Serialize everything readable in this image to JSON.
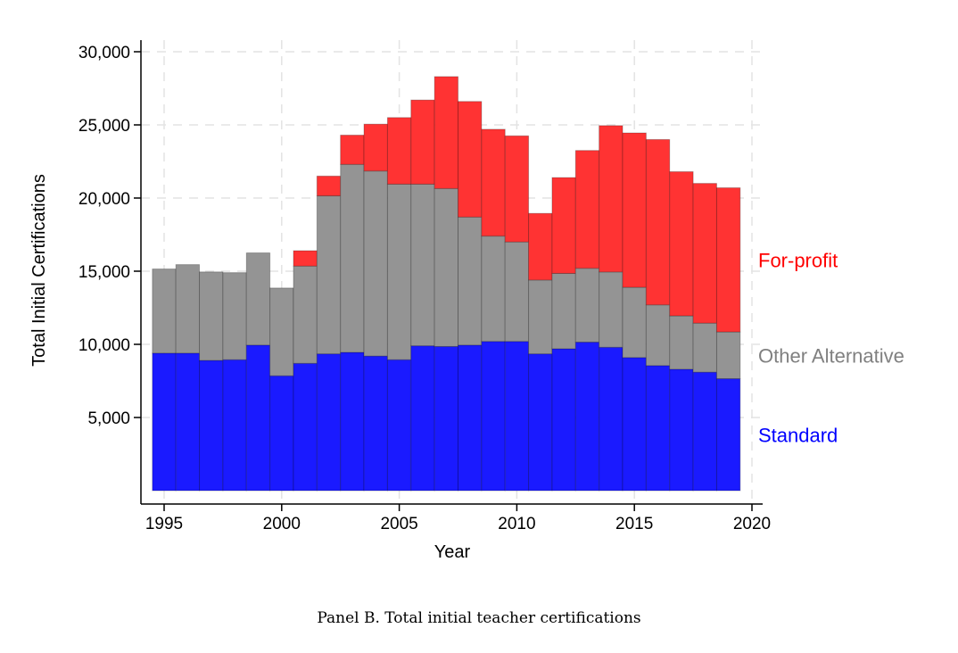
{
  "caption": "Panel B. Total initial teacher certifications",
  "chart_data": {
    "type": "bar",
    "stacked": true,
    "xlabel": "Year",
    "ylabel": "Total Initial Certifications",
    "ylim": [
      0,
      30000
    ],
    "xlim": [
      1994.5,
      2020
    ],
    "x_ticks": [
      1995,
      2000,
      2005,
      2010,
      2015,
      2020
    ],
    "x_tick_labels": [
      "1995",
      "2000",
      "2005",
      "2010",
      "2015",
      "2020"
    ],
    "y_ticks": [
      5000,
      10000,
      15000,
      20000,
      25000,
      30000
    ],
    "y_tick_labels": [
      "5,000",
      "10,000",
      "15,000",
      "20,000",
      "25,000",
      "30,000"
    ],
    "grid": true,
    "legend_placement": "right, beside each band",
    "categories": [
      1995,
      1996,
      1997,
      1998,
      1999,
      2000,
      2001,
      2002,
      2003,
      2004,
      2005,
      2006,
      2007,
      2008,
      2009,
      2010,
      2011,
      2012,
      2013,
      2014,
      2015,
      2016,
      2017,
      2018,
      2019
    ],
    "series": [
      {
        "name": "Standard",
        "color": "#1a1aff",
        "values": [
          9400,
          9400,
          8900,
          8950,
          9950,
          7850,
          8700,
          9350,
          9450,
          9200,
          8950,
          9900,
          9850,
          9950,
          10200,
          10200,
          9350,
          9700,
          10150,
          9800,
          9100,
          8550,
          8300,
          8100,
          7650
        ]
      },
      {
        "name": "Other Alternative",
        "color": "#949494",
        "values": [
          5750,
          6050,
          6050,
          5950,
          6300,
          6000,
          6650,
          10800,
          12850,
          12650,
          12000,
          11050,
          10800,
          8750,
          7200,
          6800,
          5050,
          5150,
          5050,
          5150,
          4800,
          4150,
          3650,
          3350,
          3200
        ]
      },
      {
        "name": "For-profit",
        "color": "#ff3333",
        "values": [
          0,
          0,
          0,
          0,
          0,
          0,
          1050,
          1350,
          2000,
          3200,
          4550,
          5750,
          7650,
          7900,
          7300,
          7250,
          4550,
          6550,
          8050,
          10000,
          10550,
          11300,
          9850,
          9550,
          9850
        ]
      }
    ]
  }
}
